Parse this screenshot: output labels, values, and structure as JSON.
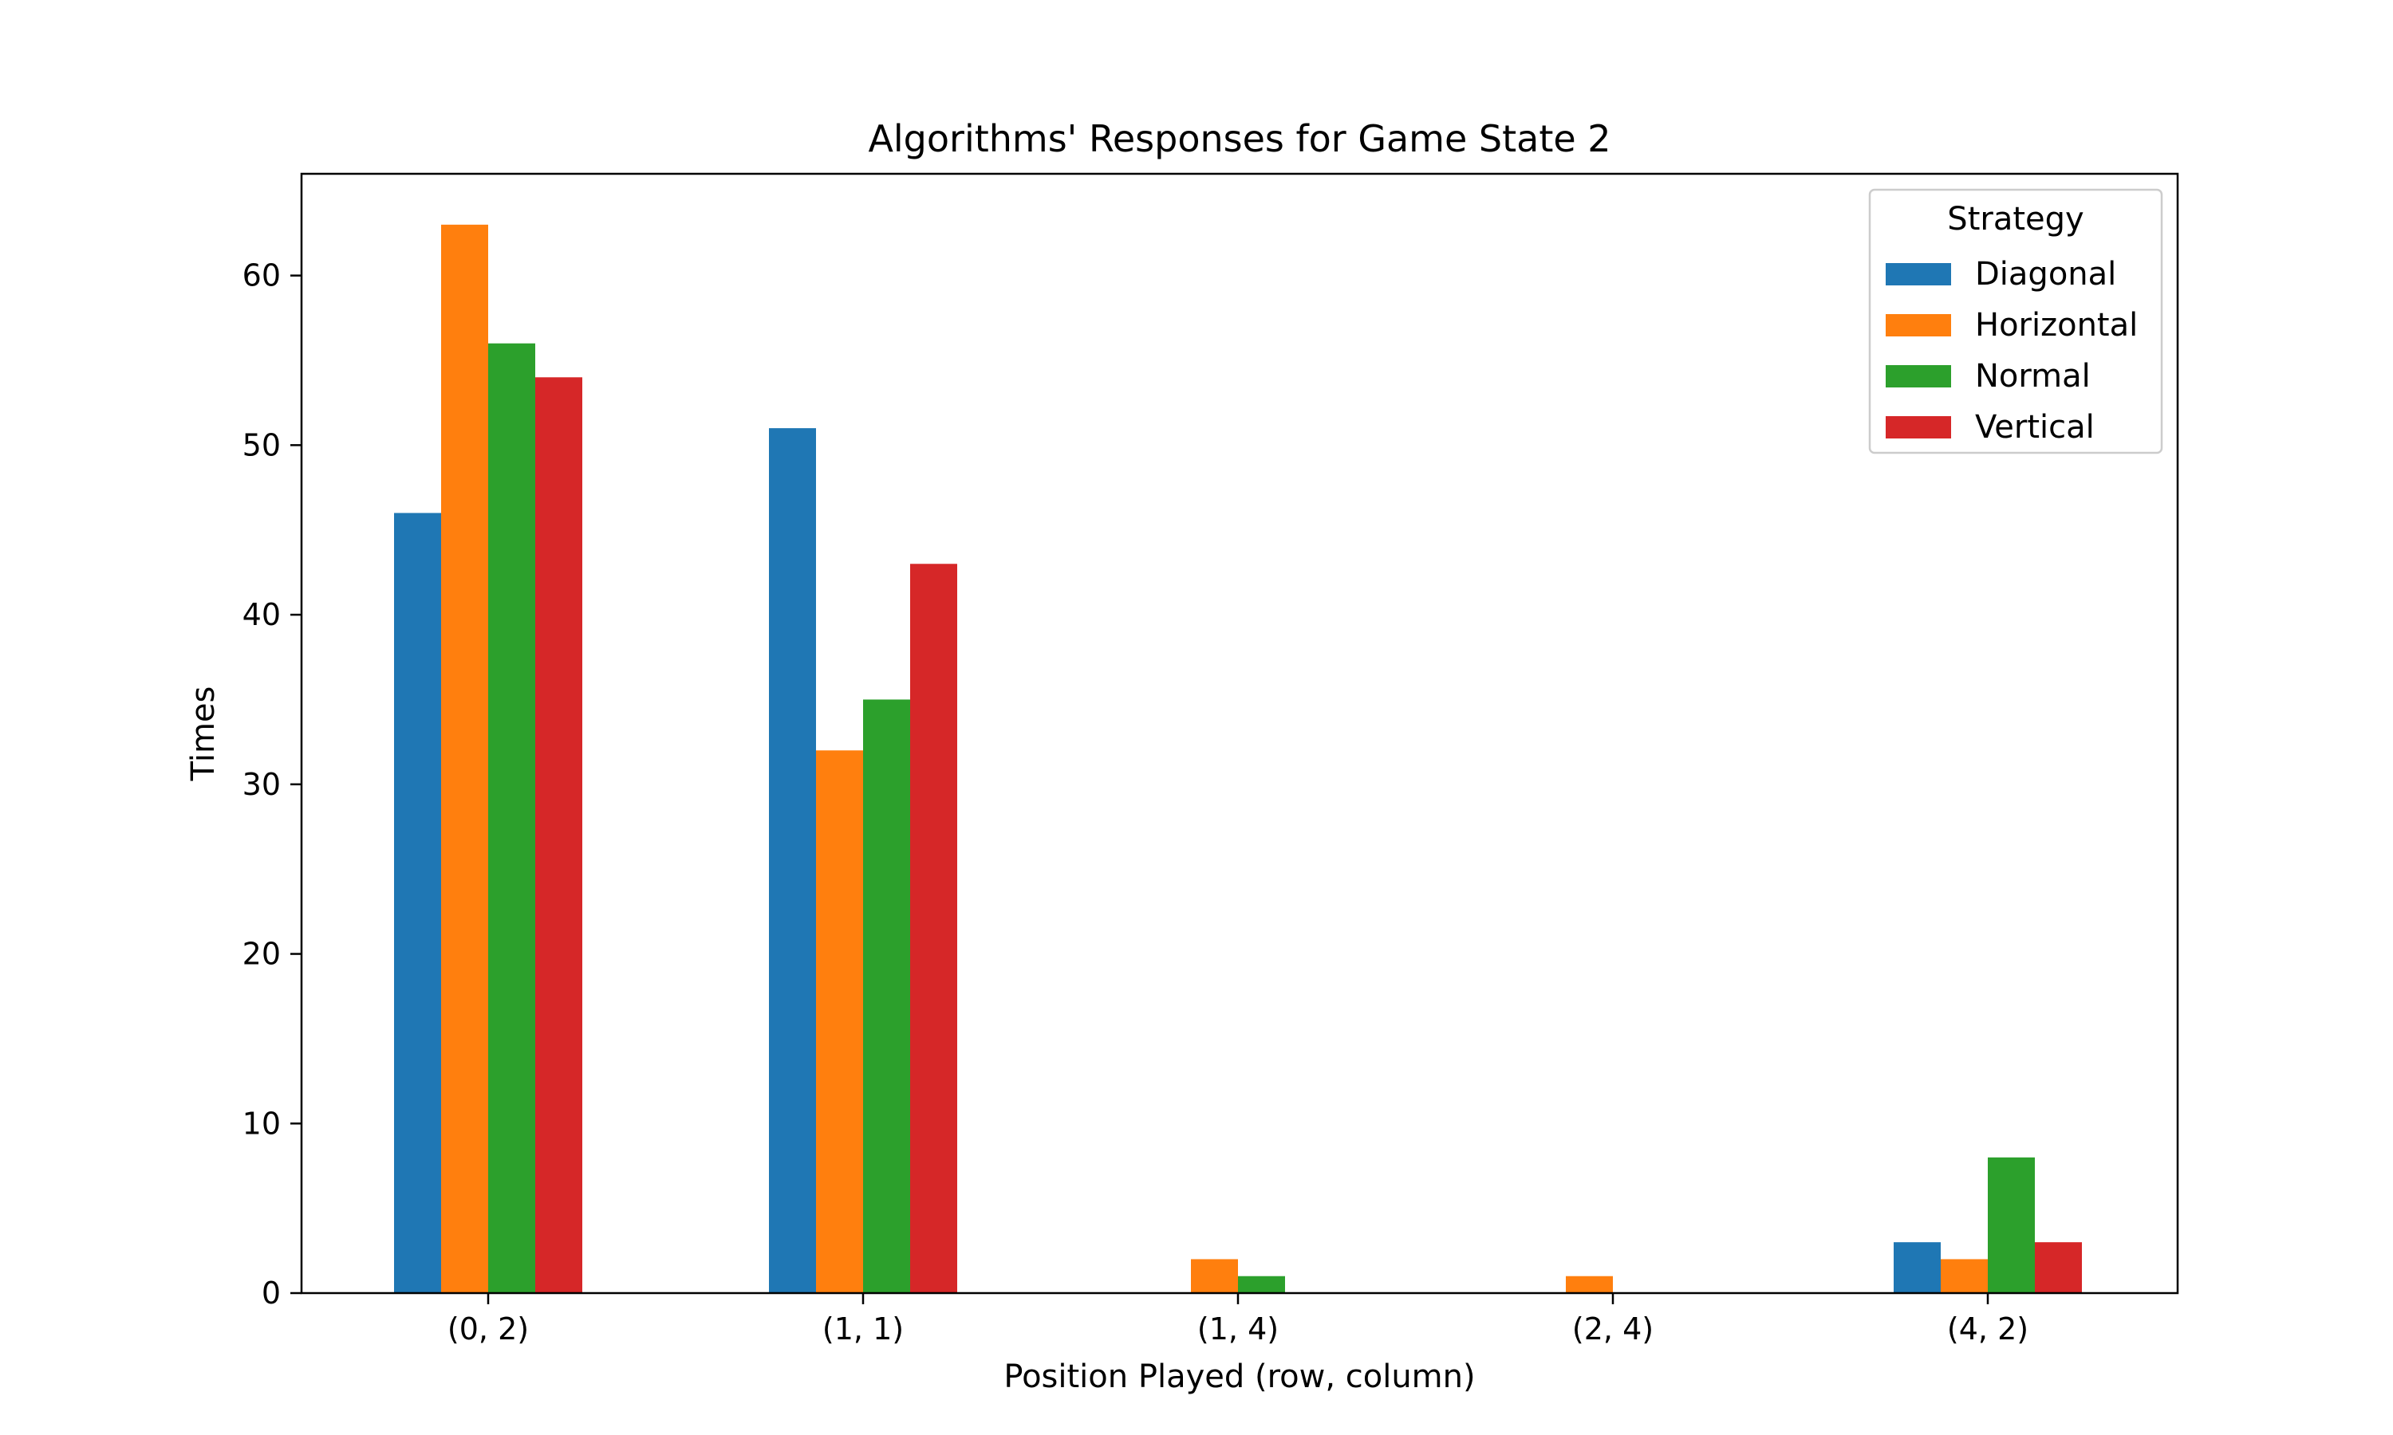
{
  "chart_data": {
    "type": "bar",
    "title": "Algorithms' Responses for Game State 2",
    "xlabel": "Position Played (row, column)",
    "ylabel": "Times",
    "categories": [
      "(0, 2)",
      "(1, 1)",
      "(1, 4)",
      "(2, 4)",
      "(4, 2)"
    ],
    "series": [
      {
        "name": "Diagonal",
        "color": "#1f77b4",
        "values": [
          46,
          51,
          0,
          0,
          3
        ]
      },
      {
        "name": "Horizontal",
        "color": "#ff7f0e",
        "values": [
          63,
          32,
          2,
          1,
          2
        ]
      },
      {
        "name": "Normal",
        "color": "#2ca02c",
        "values": [
          56,
          35,
          1,
          0,
          8
        ]
      },
      {
        "name": "Vertical",
        "color": "#d62728",
        "values": [
          54,
          43,
          0,
          0,
          3
        ]
      }
    ],
    "ylim": [
      0,
      66
    ],
    "yticks": [
      0,
      10,
      20,
      30,
      40,
      50,
      60
    ],
    "legend": {
      "title": "Strategy",
      "placement": "top-right"
    },
    "grid": false
  }
}
